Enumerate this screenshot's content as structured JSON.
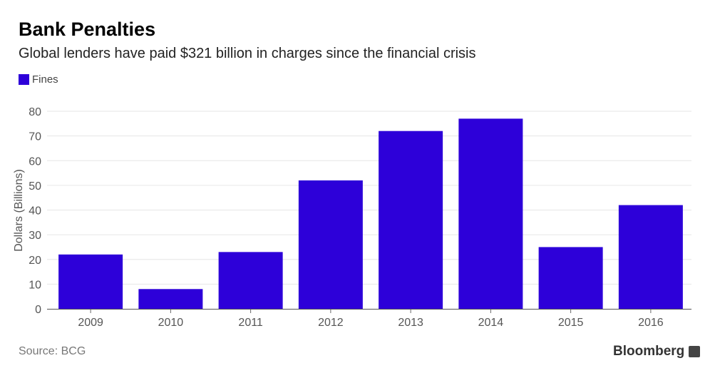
{
  "chart_data": {
    "type": "bar",
    "title": "Bank Penalties",
    "subtitle": "Global lenders have paid $321 billion in charges since the financial crisis",
    "categories": [
      "2009",
      "2010",
      "2011",
      "2012",
      "2013",
      "2014",
      "2015",
      "2016"
    ],
    "series": [
      {
        "name": "Fines",
        "values": [
          22,
          8,
          23,
          52,
          72,
          77,
          25,
          42
        ]
      }
    ],
    "xlabel": "",
    "ylabel": "Dollars (Billions)",
    "ylim": [
      0,
      80
    ],
    "yticks": [
      0,
      10,
      20,
      30,
      40,
      50,
      60,
      70,
      80
    ],
    "grid": true,
    "legend": "top-left",
    "color": "#2d00d9",
    "source": "Source: BCG",
    "brand": "Bloomberg"
  }
}
